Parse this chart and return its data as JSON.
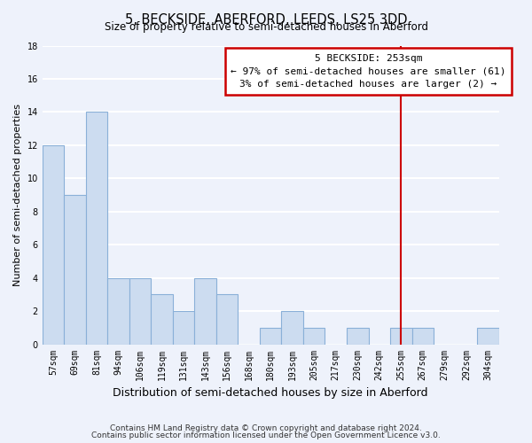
{
  "title": "5, BECKSIDE, ABERFORD, LEEDS, LS25 3DD",
  "subtitle": "Size of property relative to semi-detached houses in Aberford",
  "xlabel": "Distribution of semi-detached houses by size in Aberford",
  "ylabel": "Number of semi-detached properties",
  "bin_labels": [
    "57sqm",
    "69sqm",
    "81sqm",
    "94sqm",
    "106sqm",
    "119sqm",
    "131sqm",
    "143sqm",
    "156sqm",
    "168sqm",
    "180sqm",
    "193sqm",
    "205sqm",
    "217sqm",
    "230sqm",
    "242sqm",
    "255sqm",
    "267sqm",
    "279sqm",
    "292sqm",
    "304sqm"
  ],
  "bin_values": [
    12,
    9,
    14,
    4,
    4,
    3,
    2,
    4,
    3,
    0,
    1,
    2,
    1,
    0,
    1,
    0,
    1,
    1,
    0,
    0,
    1
  ],
  "bar_color": "#ccdcf0",
  "bar_edge_color": "#8ab0d8",
  "property_line_index": 16,
  "property_line_color": "#cc0000",
  "annotation_title": "5 BECKSIDE: 253sqm",
  "annotation_line1": "← 97% of semi-detached houses are smaller (61)",
  "annotation_line2": "3% of semi-detached houses are larger (2) →",
  "annotation_box_color": "#ffffff",
  "annotation_box_edge": "#cc0000",
  "ylim": [
    0,
    18
  ],
  "yticks": [
    0,
    2,
    4,
    6,
    8,
    10,
    12,
    14,
    16,
    18
  ],
  "footer_line1": "Contains HM Land Registry data © Crown copyright and database right 2024.",
  "footer_line2": "Contains public sector information licensed under the Open Government Licence v3.0.",
  "background_color": "#eef2fb",
  "grid_color": "#ffffff",
  "title_fontsize": 10.5,
  "subtitle_fontsize": 8.5,
  "xlabel_fontsize": 9,
  "ylabel_fontsize": 8,
  "tick_fontsize": 7,
  "annotation_fontsize": 8,
  "footer_fontsize": 6.5
}
